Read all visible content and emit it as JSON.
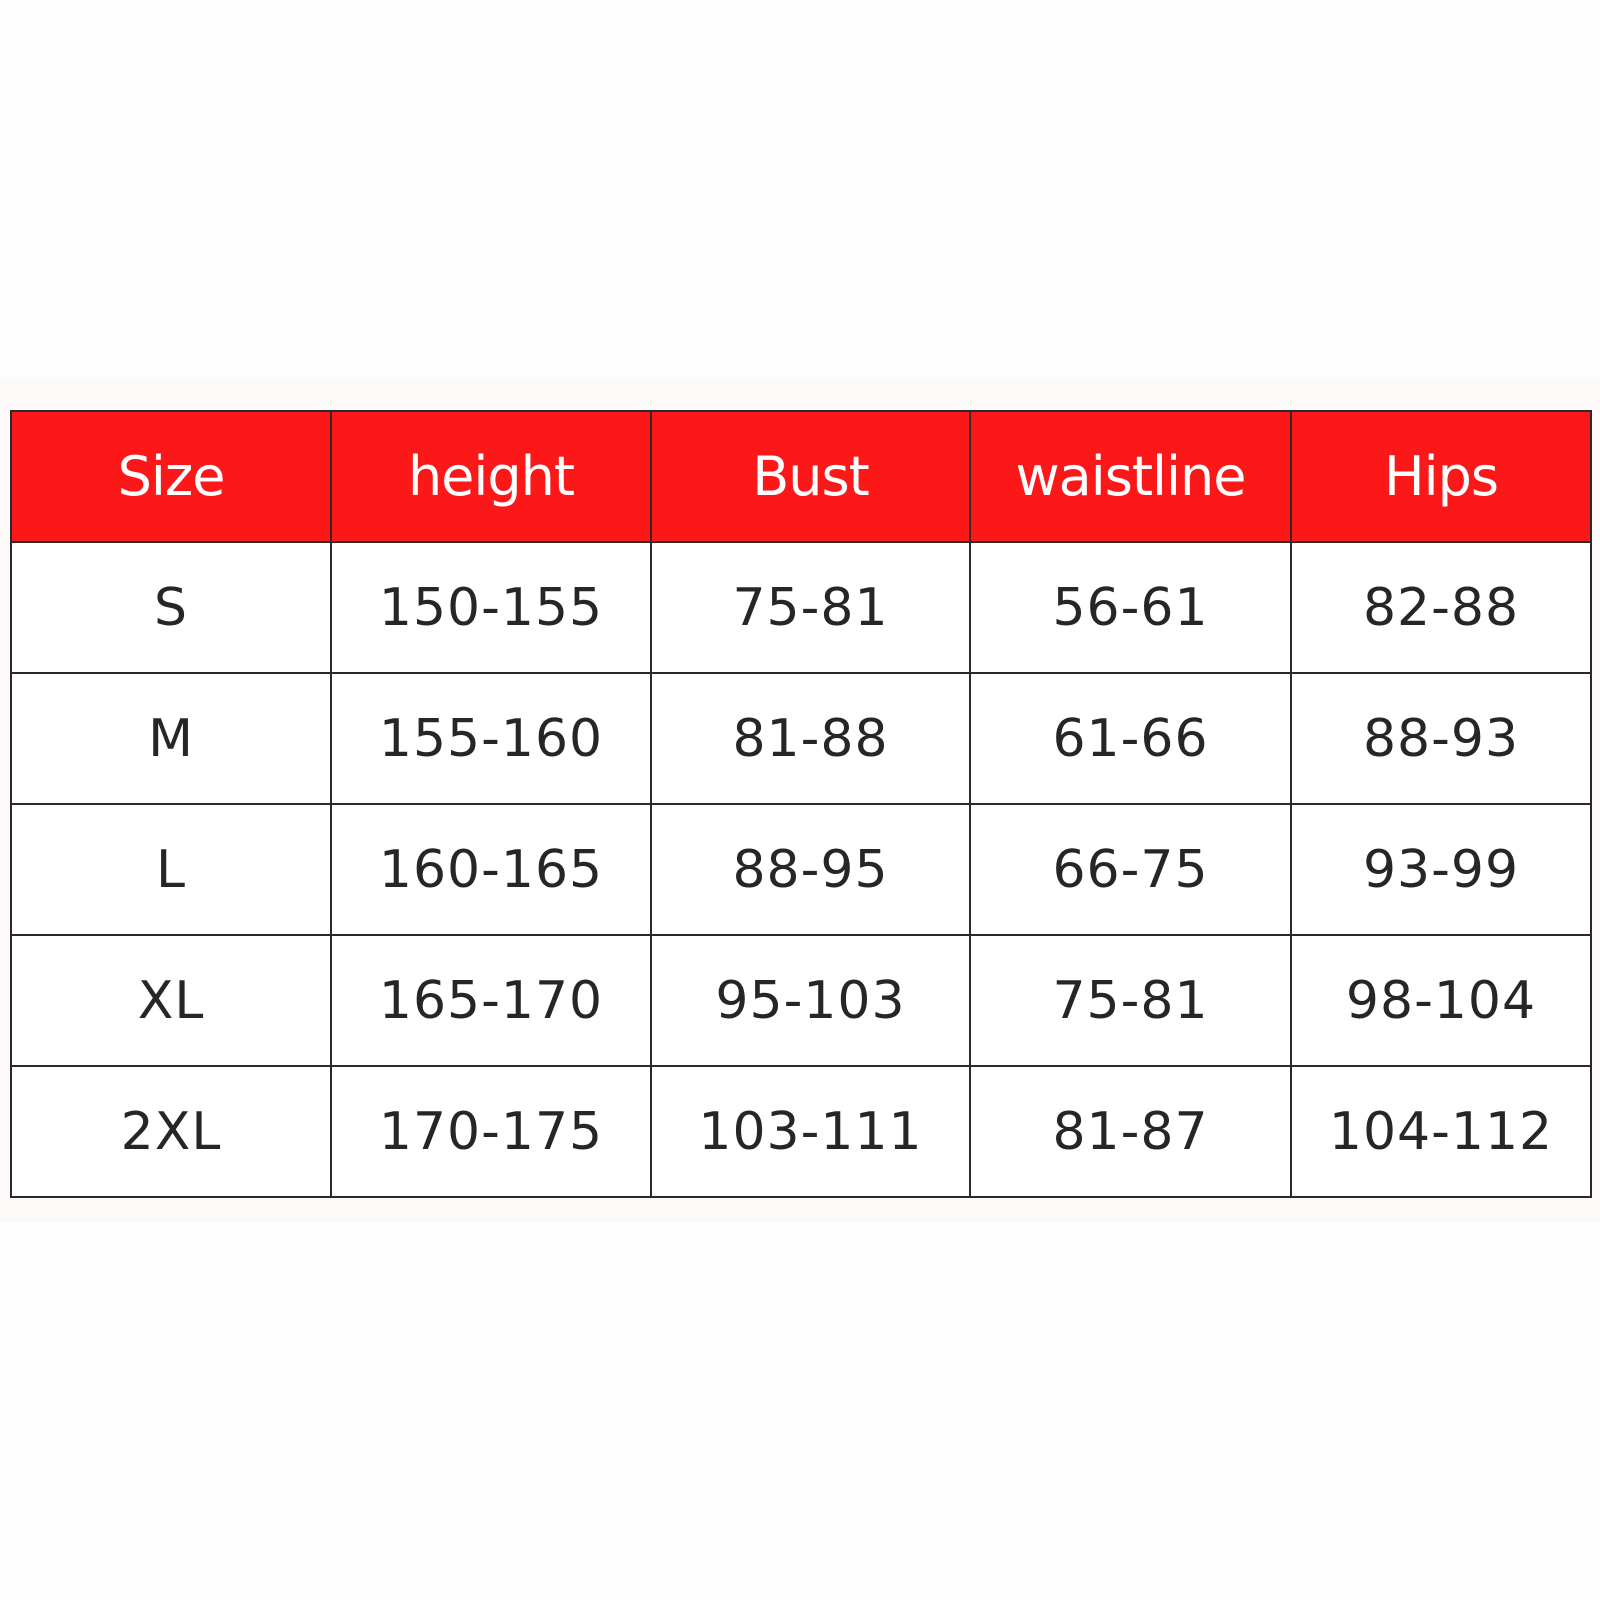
{
  "colors": {
    "header_bg": "#fc1818",
    "header_text": "#ffffff",
    "cell_text": "#262626",
    "border": "#2a2a2a"
  },
  "table": {
    "headers": [
      "Size",
      "height",
      "Bust",
      "waistline",
      "Hips"
    ],
    "rows": [
      [
        "S",
        "150-155",
        "75-81",
        "56-61",
        "82-88"
      ],
      [
        "M",
        "155-160",
        "81-88",
        "61-66",
        "88-93"
      ],
      [
        "L",
        "160-165",
        "88-95",
        "66-75",
        "93-99"
      ],
      [
        "XL",
        "165-170",
        "95-103",
        "75-81",
        "98-104"
      ],
      [
        "2XL",
        "170-175",
        "103-111",
        "81-87",
        "104-112"
      ]
    ]
  }
}
